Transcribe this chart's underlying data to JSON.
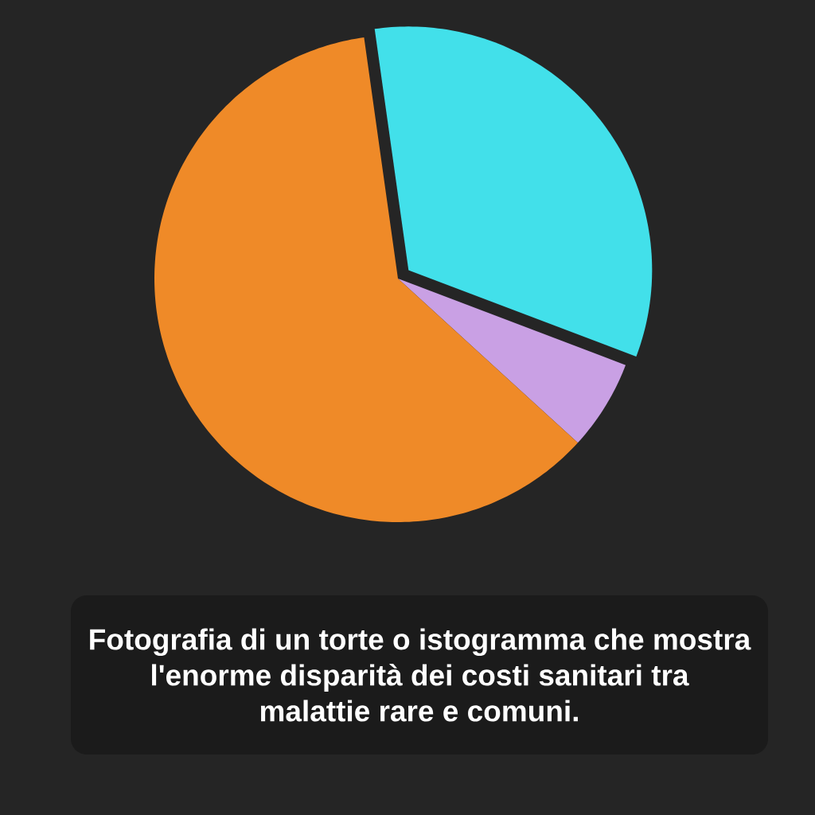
{
  "chart_data": {
    "type": "pie",
    "categories": [
      null,
      null,
      null
    ],
    "values": [
      33,
      6,
      61
    ],
    "colors": [
      "#42e0ea",
      "#c9a0e4",
      "#ef8a28"
    ],
    "annotations": [
      "Fotografia di un torte o istogramma che mostra l'enorme disparità dei costi sanitari tra malattie rare e comuni."
    ]
  }
}
